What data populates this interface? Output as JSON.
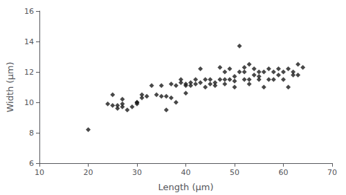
{
  "chart_data": {
    "type": "scatter",
    "x": [
      20,
      24,
      25,
      25,
      26,
      26,
      27,
      27,
      27,
      28,
      29,
      30,
      30,
      30,
      31,
      31,
      32,
      33,
      34,
      35,
      35,
      36,
      36,
      37,
      37,
      38,
      38,
      39,
      39,
      40,
      40,
      40,
      41,
      41,
      42,
      42,
      43,
      43,
      44,
      44,
      45,
      45,
      46,
      46,
      47,
      47,
      48,
      48,
      48,
      49,
      49,
      50,
      50,
      50,
      51,
      51,
      52,
      52,
      52,
      53,
      53,
      53,
      54,
      54,
      55,
      55,
      55,
      56,
      56,
      57,
      57,
      58,
      58,
      59,
      59,
      60,
      60,
      61,
      61,
      62,
      62,
      63,
      63,
      64
    ],
    "values": [
      8.2,
      9.9,
      9.8,
      10.5,
      9.6,
      9.8,
      9.7,
      9.9,
      10.2,
      9.5,
      9.7,
      9.9,
      10.0,
      10.0,
      10.3,
      10.5,
      10.4,
      11.1,
      10.5,
      11.1,
      10.4,
      9.5,
      10.4,
      10.3,
      11.2,
      10.0,
      11.1,
      11.3,
      11.5,
      11.1,
      11.2,
      10.6,
      11.1,
      11.3,
      11.2,
      11.5,
      11.3,
      12.2,
      11.0,
      11.5,
      11.2,
      11.5,
      11.1,
      11.3,
      11.5,
      12.3,
      11.2,
      11.5,
      12.0,
      11.5,
      12.2,
      11.4,
      11.7,
      11.0,
      13.7,
      12.0,
      11.5,
      12.3,
      12.0,
      11.5,
      11.2,
      12.5,
      11.8,
      12.2,
      12.0,
      11.5,
      11.7,
      12.0,
      11.0,
      12.2,
      11.5,
      12.0,
      11.5,
      12.2,
      11.8,
      12.0,
      11.5,
      12.2,
      11.0,
      12.0,
      11.8,
      12.5,
      11.8,
      12.3
    ],
    "xlabel": "Length (μm)",
    "ylabel": "Width (μm)",
    "xlim": [
      10,
      70
    ],
    "ylim": [
      6,
      16
    ],
    "xticks": [
      10,
      20,
      30,
      40,
      50,
      60,
      70
    ],
    "yticks": [
      6,
      8,
      10,
      12,
      14,
      16
    ],
    "marker": "diamond",
    "color": "#1a1a1a",
    "grid": false
  }
}
